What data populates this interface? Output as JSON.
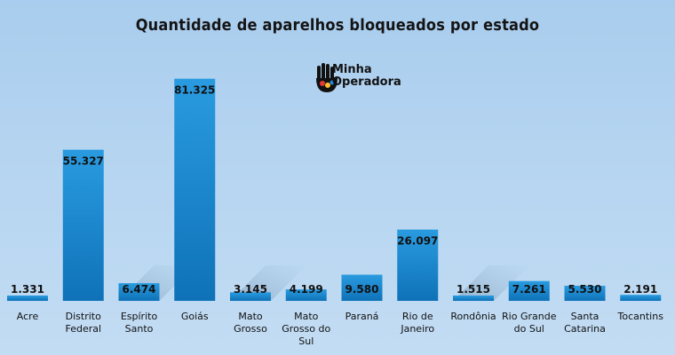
{
  "chart_data": {
    "type": "bar",
    "title": "Quantidade de aparelhos bloqueados por estado",
    "xlabel": "",
    "ylabel": "",
    "ylim": [
      0,
      90000
    ],
    "grid": false,
    "legend": "none",
    "bar_color": "#1f8fd6",
    "bar_color_dark": "#0f6fb5",
    "categories": [
      [
        "Acre"
      ],
      [
        "Distrito",
        "Federal"
      ],
      [
        "Espírito",
        "Santo"
      ],
      [
        "Goiás"
      ],
      [
        "Mato",
        "Grosso"
      ],
      [
        "Mato",
        "Grosso do",
        "Sul"
      ],
      [
        "Paraná"
      ],
      [
        "Rio de",
        "Janeiro"
      ],
      [
        "Rondônia"
      ],
      [
        "Rio Grande",
        "do Sul"
      ],
      [
        "Santa",
        "Catarina"
      ],
      [
        "Tocantins"
      ]
    ],
    "values": [
      1331,
      55327,
      6474,
      81325,
      3145,
      4199,
      9580,
      26097,
      1515,
      7261,
      5530,
      2191
    ],
    "value_labels": [
      "1.331",
      "55.327",
      "6.474",
      "81.325",
      "3.145",
      "4.199",
      "9.580",
      "26.097",
      "1.515",
      "7.261",
      "5.530",
      "2.191"
    ]
  },
  "logo": {
    "line1": "Minha",
    "line2": "Operadora"
  }
}
